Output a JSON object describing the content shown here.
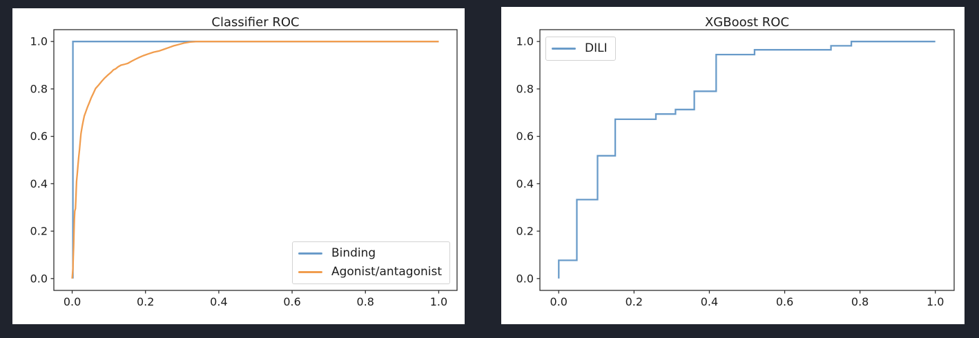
{
  "page": {
    "background_color": "#1f232d",
    "theme": {
      "figure_background": "#ffffff",
      "axis_color": "#2e2e2e",
      "text_color": "#1c1c1c",
      "legend_border_color": "#d2d2d2",
      "series_blue": "#699bc9",
      "series_orange": "#f19d4e"
    }
  },
  "chart_data": [
    {
      "type": "line",
      "title": "Classifier ROC",
      "xlabel": "",
      "ylabel": "",
      "xlim": [
        -0.05,
        1.05
      ],
      "ylim": [
        -0.05,
        1.05
      ],
      "grid": false,
      "x_tick_values": [
        0.0,
        0.2,
        0.4,
        0.6,
        0.8,
        1.0
      ],
      "x_tick_labels": [
        "0.0",
        "0.2",
        "0.4",
        "0.6",
        "0.8",
        "1.0"
      ],
      "y_tick_values": [
        0.0,
        0.2,
        0.4,
        0.6,
        0.8,
        1.0
      ],
      "y_tick_labels": [
        "0.0",
        "0.2",
        "0.4",
        "0.6",
        "0.8",
        "1.0"
      ],
      "legend_position": "lower-right",
      "series": [
        {
          "name": "Binding",
          "color": "#699bc9",
          "points": [
            [
              0.002,
              0.0
            ],
            [
              0.002,
              1.0
            ],
            [
              1.0,
              1.0
            ]
          ]
        },
        {
          "name": "Agonist/antagonist",
          "color": "#f19d4e",
          "points": [
            [
              0.0,
              0.0
            ],
            [
              0.002,
              0.04
            ],
            [
              0.003,
              0.09
            ],
            [
              0.004,
              0.14
            ],
            [
              0.005,
              0.2
            ],
            [
              0.006,
              0.25
            ],
            [
              0.007,
              0.285
            ],
            [
              0.009,
              0.295
            ],
            [
              0.01,
              0.335
            ],
            [
              0.011,
              0.375
            ],
            [
              0.012,
              0.41
            ],
            [
              0.014,
              0.445
            ],
            [
              0.016,
              0.48
            ],
            [
              0.018,
              0.515
            ],
            [
              0.02,
              0.545
            ],
            [
              0.022,
              0.578
            ],
            [
              0.024,
              0.612
            ],
            [
              0.027,
              0.64
            ],
            [
              0.03,
              0.664
            ],
            [
              0.033,
              0.686
            ],
            [
              0.037,
              0.703
            ],
            [
              0.042,
              0.724
            ],
            [
              0.047,
              0.743
            ],
            [
              0.052,
              0.763
            ],
            [
              0.058,
              0.782
            ],
            [
              0.064,
              0.802
            ],
            [
              0.072,
              0.816
            ],
            [
              0.08,
              0.831
            ],
            [
              0.088,
              0.845
            ],
            [
              0.097,
              0.858
            ],
            [
              0.106,
              0.87
            ],
            [
              0.113,
              0.881
            ],
            [
              0.118,
              0.884
            ],
            [
              0.125,
              0.893
            ],
            [
              0.133,
              0.9
            ],
            [
              0.143,
              0.904
            ],
            [
              0.152,
              0.908
            ],
            [
              0.162,
              0.917
            ],
            [
              0.172,
              0.925
            ],
            [
              0.183,
              0.933
            ],
            [
              0.195,
              0.941
            ],
            [
              0.208,
              0.948
            ],
            [
              0.222,
              0.955
            ],
            [
              0.237,
              0.96
            ],
            [
              0.25,
              0.967
            ],
            [
              0.263,
              0.974
            ],
            [
              0.277,
              0.982
            ],
            [
              0.292,
              0.988
            ],
            [
              0.307,
              0.994
            ],
            [
              0.322,
              0.998
            ],
            [
              0.34,
              1.0
            ],
            [
              1.0,
              1.0
            ]
          ]
        }
      ]
    },
    {
      "type": "line",
      "title": "XGBoost ROC",
      "xlabel": "",
      "ylabel": "",
      "xlim": [
        -0.05,
        1.05
      ],
      "ylim": [
        -0.05,
        1.05
      ],
      "grid": false,
      "x_tick_values": [
        0.0,
        0.2,
        0.4,
        0.6,
        0.8,
        1.0
      ],
      "x_tick_labels": [
        "0.0",
        "0.2",
        "0.4",
        "0.6",
        "0.8",
        "1.0"
      ],
      "y_tick_values": [
        0.0,
        0.2,
        0.4,
        0.6,
        0.8,
        1.0
      ],
      "y_tick_labels": [
        "0.0",
        "0.2",
        "0.4",
        "0.6",
        "0.8",
        "1.0"
      ],
      "legend_position": "upper-left",
      "series": [
        {
          "name": "DILI",
          "color": "#699bc9",
          "points": [
            [
              0.0,
              0.0
            ],
            [
              0.0,
              0.077
            ],
            [
              0.048,
              0.077
            ],
            [
              0.048,
              0.333
            ],
            [
              0.103,
              0.333
            ],
            [
              0.103,
              0.518
            ],
            [
              0.15,
              0.518
            ],
            [
              0.15,
              0.672
            ],
            [
              0.258,
              0.672
            ],
            [
              0.258,
              0.694
            ],
            [
              0.31,
              0.694
            ],
            [
              0.31,
              0.713
            ],
            [
              0.36,
              0.713
            ],
            [
              0.36,
              0.79
            ],
            [
              0.418,
              0.79
            ],
            [
              0.418,
              0.945
            ],
            [
              0.52,
              0.945
            ],
            [
              0.52,
              0.965
            ],
            [
              0.723,
              0.965
            ],
            [
              0.723,
              0.982
            ],
            [
              0.777,
              0.982
            ],
            [
              0.777,
              1.0
            ],
            [
              1.0,
              1.0
            ]
          ]
        }
      ]
    }
  ]
}
